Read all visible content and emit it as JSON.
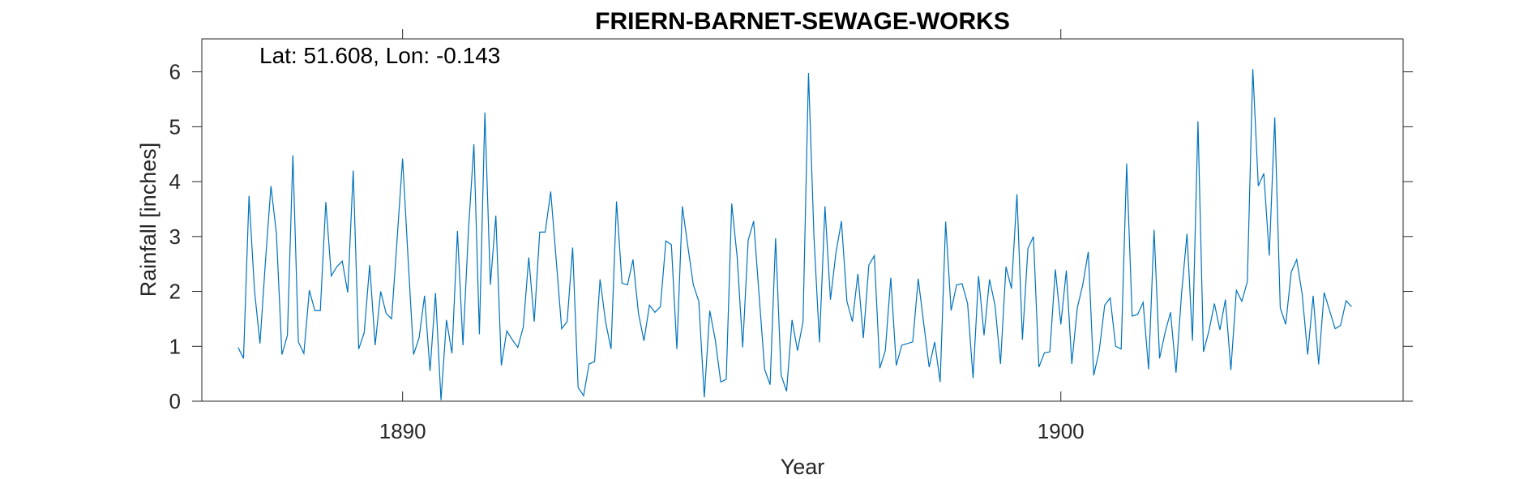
{
  "chart_data": {
    "type": "line",
    "title": "FRIERN-BARNET-SEWAGE-WORKS",
    "annotation": "Lat: 51.608, Lon: -0.143",
    "xlabel": "Year",
    "ylabel": "Rainfall [inches]",
    "xlim": [
      1886.95,
      1905.2
    ],
    "ylim": [
      0,
      6.6
    ],
    "xticks": [
      1890,
      1900
    ],
    "yticks": [
      0,
      1,
      2,
      3,
      4,
      5,
      6
    ],
    "grid": false,
    "series_color": "#0072BD",
    "x_start": 1887.5,
    "x_step_months": 1,
    "series": [
      {
        "values": [
          0.98,
          0.78,
          3.74,
          2.02,
          1.05,
          2.55,
          3.92,
          3.05,
          0.85,
          1.2,
          4.48,
          1.08,
          0.87,
          2.02,
          1.65,
          1.65,
          3.63,
          2.28,
          2.45,
          2.55,
          1.98,
          4.2,
          0.95,
          1.25,
          2.48,
          1.02,
          2.0,
          1.6,
          1.5,
          2.95,
          4.42,
          2.6,
          0.85,
          1.15,
          1.92,
          0.55,
          1.97,
          0.02,
          1.48,
          0.87,
          3.1,
          1.02,
          3.1,
          4.68,
          1.22,
          5.26,
          2.12,
          3.38,
          0.65,
          1.28,
          1.12,
          0.98,
          1.35,
          2.62,
          1.45,
          3.08,
          3.08,
          3.82,
          2.58,
          1.32,
          1.45,
          2.8,
          0.25,
          0.1,
          0.68,
          0.72,
          2.22,
          1.45,
          0.95,
          3.64,
          2.15,
          2.12,
          2.58,
          1.6,
          1.1,
          1.75,
          1.62,
          1.72,
          2.92,
          2.85,
          0.95,
          3.55,
          2.82,
          2.12,
          1.82,
          0.07,
          1.65,
          1.12,
          0.35,
          0.4,
          3.6,
          2.62,
          0.98,
          2.93,
          3.28,
          1.92,
          0.58,
          0.3,
          2.97,
          0.48,
          0.18,
          1.48,
          0.92,
          1.45,
          5.98,
          2.98,
          1.07,
          3.55,
          1.85,
          2.7,
          3.28,
          1.82,
          1.45,
          2.32,
          1.15,
          2.48,
          2.65,
          0.6,
          0.92,
          2.25,
          0.65,
          1.02,
          1.05,
          1.08,
          2.23,
          1.42,
          0.62,
          1.08,
          0.35,
          3.27,
          1.65,
          2.12,
          2.14,
          1.78,
          0.42,
          2.28,
          1.2,
          2.22,
          1.75,
          0.68,
          2.45,
          2.05,
          3.77,
          1.12,
          2.78,
          3.0,
          0.62,
          0.88,
          0.9,
          2.4,
          1.4,
          2.38,
          0.68,
          1.7,
          2.12,
          2.72,
          0.47,
          0.92,
          1.75,
          1.88,
          1.0,
          0.95,
          4.33,
          1.55,
          1.58,
          1.8,
          0.58,
          3.12,
          0.78,
          1.25,
          1.62,
          0.52,
          1.95,
          3.05,
          1.1,
          5.1,
          0.9,
          1.28,
          1.78,
          1.3,
          1.85,
          0.57,
          2.02,
          1.82,
          2.18,
          6.05,
          3.92,
          4.15,
          2.65,
          5.17,
          1.7,
          1.4,
          2.35,
          2.58,
          1.95,
          0.85,
          1.92,
          0.67,
          1.98,
          1.65,
          1.32,
          1.38,
          1.83,
          1.72
        ]
      }
    ]
  }
}
